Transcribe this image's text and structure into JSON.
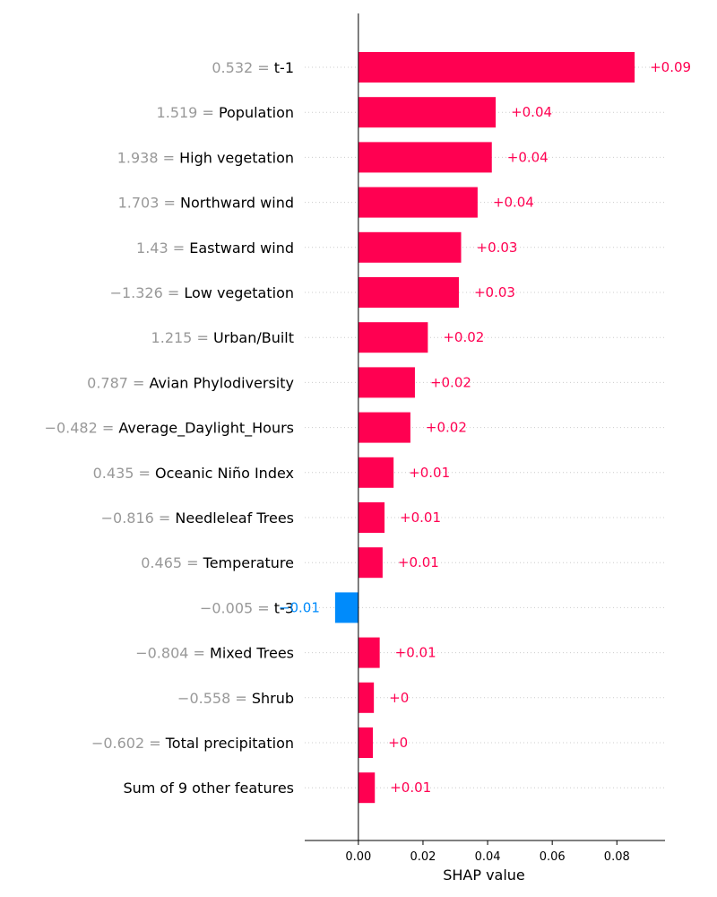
{
  "chart_data": {
    "type": "bar",
    "orientation": "horizontal",
    "xlabel": "SHAP value",
    "xlim": [
      -0.0166,
      0.0949
    ],
    "xticks": [
      "0.00",
      "0.02",
      "0.04",
      "0.06",
      "0.08"
    ],
    "xtick_values": [
      0,
      0.02,
      0.04,
      0.06,
      0.08
    ],
    "grid": false,
    "colors": {
      "positive": "#ff0051",
      "negative": "#008bfb",
      "feature_value": "#999999"
    },
    "rows": [
      {
        "feature_value": "0.532 =",
        "feature": "t-1",
        "value": 0.0855,
        "label": "+0.09"
      },
      {
        "feature_value": "1.519 =",
        "feature": "Population",
        "value": 0.0425,
        "label": "+0.04"
      },
      {
        "feature_value": "1.938 =",
        "feature": "High vegetation",
        "value": 0.0413,
        "label": "+0.04"
      },
      {
        "feature_value": "1.703 =",
        "feature": "Northward wind",
        "value": 0.0369,
        "label": "+0.04"
      },
      {
        "feature_value": "1.43 =",
        "feature": "Eastward wind",
        "value": 0.0318,
        "label": "+0.03"
      },
      {
        "feature_value": "−1.326 =",
        "feature": "Low vegetation",
        "value": 0.0311,
        "label": "+0.03"
      },
      {
        "feature_value": "1.215 =",
        "feature": "Urban/Built",
        "value": 0.0215,
        "label": "+0.02"
      },
      {
        "feature_value": "0.787 =",
        "feature": "Avian Phylodiversity",
        "value": 0.0175,
        "label": "+0.02"
      },
      {
        "feature_value": "−0.482 =",
        "feature": "Average_Daylight_Hours",
        "value": 0.0161,
        "label": "+0.02"
      },
      {
        "feature_value": "0.435 =",
        "feature": "Oceanic Niño Index",
        "value": 0.0109,
        "label": "+0.01"
      },
      {
        "feature_value": "−0.816 =",
        "feature": "Needleleaf Trees",
        "value": 0.0081,
        "label": "+0.01"
      },
      {
        "feature_value": "0.465 =",
        "feature": "Temperature",
        "value": 0.0075,
        "label": "+0.01"
      },
      {
        "feature_value": "−0.005 =",
        "feature": "t-3",
        "value": -0.0072,
        "label": "−0.01"
      },
      {
        "feature_value": "−0.804 =",
        "feature": "Mixed Trees",
        "value": 0.0066,
        "label": "+0.01"
      },
      {
        "feature_value": "−0.558 =",
        "feature": "Shrub",
        "value": 0.0048,
        "label": "+0"
      },
      {
        "feature_value": "−0.602 =",
        "feature": "Total precipitation",
        "value": 0.0045,
        "label": "+0"
      },
      {
        "feature_value": "",
        "feature": "Sum of 9 other features",
        "value": 0.0051,
        "label": "+0.01"
      }
    ]
  }
}
